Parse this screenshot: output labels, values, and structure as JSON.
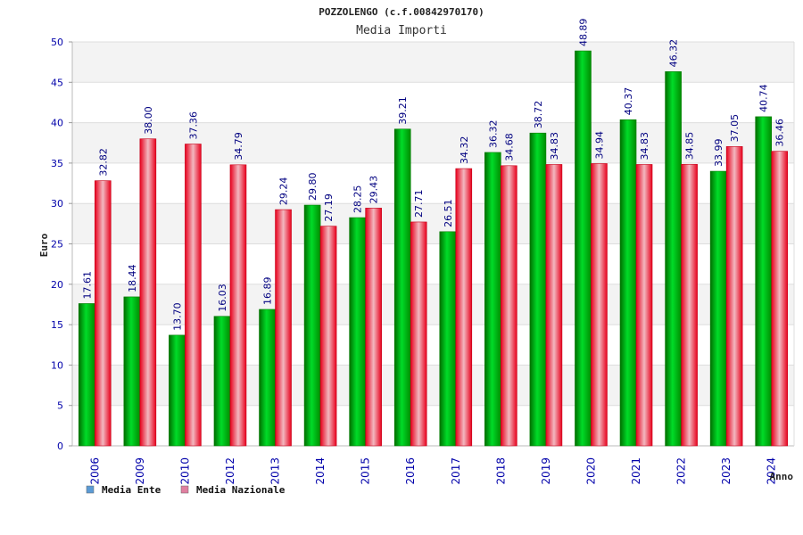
{
  "chart_data": {
    "type": "bar",
    "title": "POZZOLENGO (c.f.00842970170)",
    "subtitle": "Media Importi",
    "xlabel": "Anno",
    "ylabel": "Euro",
    "ylim": [
      0,
      50
    ],
    "yticks": [
      0,
      5,
      10,
      15,
      20,
      25,
      30,
      35,
      40,
      45,
      50
    ],
    "grid": true,
    "legend_position": "bottom-left",
    "categories": [
      "2006",
      "2009",
      "2010",
      "2012",
      "2013",
      "2014",
      "2015",
      "2016",
      "2017",
      "2018",
      "2019",
      "2020",
      "2021",
      "2022",
      "2023",
      "2024"
    ],
    "series": [
      {
        "name": "Media Ente",
        "color": "#00b400",
        "values": [
          17.61,
          18.44,
          13.7,
          16.03,
          16.89,
          29.8,
          28.25,
          39.21,
          26.51,
          36.32,
          38.72,
          48.89,
          40.37,
          46.32,
          33.99,
          40.74
        ]
      },
      {
        "name": "Media Nazionale",
        "color": "#e8001c",
        "values": [
          32.82,
          38.0,
          37.36,
          34.79,
          29.24,
          27.19,
          29.43,
          27.71,
          34.32,
          34.68,
          34.83,
          34.94,
          34.83,
          34.85,
          37.05,
          36.46
        ]
      }
    ],
    "legend": [
      {
        "label": "Media Ente",
        "color": "#5b9bd5"
      },
      {
        "label": "Media Nazionale",
        "color": "#e07fa0"
      }
    ]
  }
}
